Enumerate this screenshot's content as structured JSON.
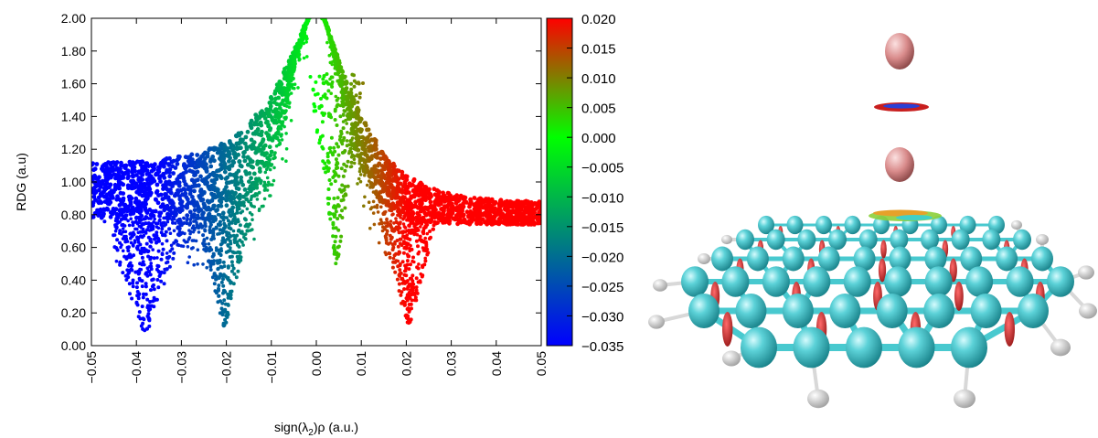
{
  "chart_data": {
    "type": "scatter",
    "xlabel_main": "sign(λ",
    "xlabel_sub": "2",
    "xlabel_tail": ")ρ (a.u.)",
    "ylabel": "RDG (a.u)",
    "xlim": [
      -0.05,
      0.05
    ],
    "ylim": [
      0.0,
      2.0
    ],
    "x_ticks": [
      "−0.05",
      "−0.04",
      "−0.03",
      "−0.02",
      "−0.01",
      "0.00",
      "0.01",
      "0.02",
      "0.03",
      "0.04",
      "0.05"
    ],
    "y_ticks": [
      "0.00",
      "0.20",
      "0.40",
      "0.60",
      "0.80",
      "1.00",
      "1.20",
      "1.40",
      "1.60",
      "1.80",
      "2.00"
    ],
    "colorbar": {
      "range": [
        -0.035,
        0.02
      ],
      "ticks": [
        "0.020",
        "0.015",
        "0.010",
        "0.005",
        "0.000",
        "−0.005",
        "−0.010",
        "−0.015",
        "−0.020",
        "−0.025",
        "−0.030",
        "−0.035"
      ],
      "colors": [
        "#0000ff",
        "#00ff00",
        "#ff0000"
      ]
    },
    "spikes": [
      {
        "x": -0.038,
        "y": 0.06
      },
      {
        "x": -0.0205,
        "y": 0.11
      },
      {
        "x": 0.0045,
        "y": 0.5
      },
      {
        "x": 0.0205,
        "y": 0.11
      }
    ],
    "grid": false
  },
  "render": {
    "atom_color": "#2fb6bd",
    "hydrogen_color": "#e8e8e8",
    "bond_color": "#48c9cf",
    "adsorbate_color": "#d98b8b",
    "nci_color": "#c81e1e"
  }
}
